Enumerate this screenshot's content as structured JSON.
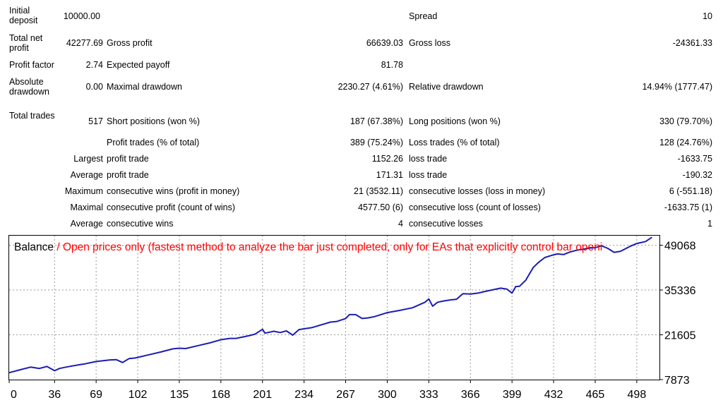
{
  "report": {
    "initial_deposit_label": "Initial deposit",
    "initial_deposit": "10000.00",
    "spread_label": "Spread",
    "spread": "10",
    "total_net_profit_label": "Total net profit",
    "total_net_profit": "42277.69",
    "gross_profit_label": "Gross profit",
    "gross_profit": "66639.03",
    "gross_loss_label": "Gross loss",
    "gross_loss": "-24361.33",
    "profit_factor_label": "Profit factor",
    "profit_factor": "2.74",
    "expected_payoff_label": "Expected payoff",
    "expected_payoff": "81.78",
    "absolute_drawdown_label": "Absolute drawdown",
    "absolute_drawdown": "0.00",
    "maximal_drawdown_label": "Maximal drawdown",
    "maximal_drawdown": "2230.27 (4.61%)",
    "relative_drawdown_label": "Relative drawdown",
    "relative_drawdown": "14.94% (1777.47)",
    "total_trades_label": "Total trades",
    "total_trades": "517",
    "short_positions_label": "Short positions (won %)",
    "short_positions": "187 (67.38%)",
    "long_positions_label": "Long positions (won %)",
    "long_positions": "330 (79.70%)",
    "profit_trades_label": "Profit trades (% of total)",
    "profit_trades": "389 (75.24%)",
    "loss_trades_label": "Loss trades (% of total)",
    "loss_trades": "128 (24.76%)",
    "largest_label": "Largest",
    "largest_profit_trade_label": "profit trade",
    "largest_profit_trade": "1152.26",
    "largest_loss_trade_label": "loss trade",
    "largest_loss_trade": "-1633.75",
    "average_label": "Average",
    "average_profit_trade_label": "profit trade",
    "average_profit_trade": "171.31",
    "average_loss_trade_label": "loss trade",
    "average_loss_trade": "-190.32",
    "maximum_label": "Maximum",
    "max_consec_wins_label": "consecutive wins (profit in money)",
    "max_consec_wins": "21 (3532.11)",
    "max_consec_losses_label": "consecutive losses (loss in money)",
    "max_consec_losses": "6 (-551.18)",
    "maximal_label": "Maximal",
    "maximal_consec_profit_label": "consecutive profit (count of wins)",
    "maximal_consec_profit": "4577.50 (6)",
    "maximal_consec_loss_label": "consecutive loss (count of losses)",
    "maximal_consec_loss": "-1633.75 (1)",
    "average2_label": "Average",
    "avg_consec_wins_label": "consecutive wins",
    "avg_consec_wins": "4",
    "avg_consec_losses_label": "consecutive losses",
    "avg_consec_losses": "1"
  },
  "chart_data": {
    "type": "line",
    "title": "Balance",
    "subtitle": "Open prices only (fastest method to analyze the bar just completed, only for EAs that explicitly control bar openi",
    "title_color": "#000000",
    "subtitle_color": "#ff0000",
    "line_color": "#1c1cb4",
    "grid": true,
    "x_ticks": [
      "0",
      "36",
      "69",
      "102",
      "135",
      "168",
      "201",
      "234",
      "267",
      "300",
      "333",
      "366",
      "399",
      "432",
      "465",
      "498"
    ],
    "x_tick_values": [
      0,
      36,
      69,
      102,
      135,
      168,
      201,
      234,
      267,
      300,
      333,
      366,
      399,
      432,
      465,
      498
    ],
    "y_ticks": [
      "49068",
      "35336",
      "21605",
      "7873"
    ],
    "y_tick_values": [
      49068,
      35336,
      21605,
      7873
    ],
    "xlim": [
      0,
      516
    ],
    "ylim": [
      7873,
      52000
    ],
    "series": [
      {
        "x": [
          0,
          10,
          17,
          24,
          30,
          36,
          40,
          45,
          55,
          60,
          69,
          75,
          80,
          85,
          90,
          95,
          100,
          110,
          120,
          130,
          135,
          140,
          150,
          160,
          168,
          175,
          180,
          190,
          195,
          201,
          203,
          210,
          215,
          220,
          225,
          230,
          240,
          255,
          260,
          267,
          270,
          275,
          280,
          285,
          290,
          300,
          310,
          320,
          330,
          333,
          336,
          340,
          345,
          350,
          355,
          360,
          366,
          372,
          380,
          390,
          395,
          399,
          402,
          405,
          410,
          413,
          416,
          420,
          425,
          430,
          435,
          440,
          445,
          450,
          455,
          460,
          465,
          470,
          475,
          480,
          485,
          492,
          498,
          505,
          510
        ],
        "values": [
          10000,
          11000,
          11700,
          11300,
          11900,
          10600,
          11300,
          11700,
          12400,
          12700,
          13400,
          13700,
          13900,
          14000,
          13100,
          14300,
          14500,
          15400,
          16300,
          17300,
          17500,
          17400,
          18300,
          19200,
          20100,
          20500,
          20500,
          21300,
          21800,
          23300,
          22100,
          22700,
          22300,
          22800,
          21500,
          23200,
          23800,
          25500,
          25700,
          26600,
          27800,
          27800,
          26600,
          26800,
          27200,
          28400,
          29100,
          29900,
          31600,
          32600,
          30400,
          31600,
          32000,
          32300,
          32500,
          34200,
          34100,
          34400,
          35100,
          35900,
          35600,
          34400,
          36400,
          36500,
          38400,
          40400,
          42300,
          43800,
          45300,
          45900,
          46400,
          46200,
          47000,
          47500,
          47800,
          48200,
          48300,
          48900,
          48100,
          46900,
          47200,
          48600,
          49600,
          50200,
          51500
        ]
      }
    ]
  }
}
